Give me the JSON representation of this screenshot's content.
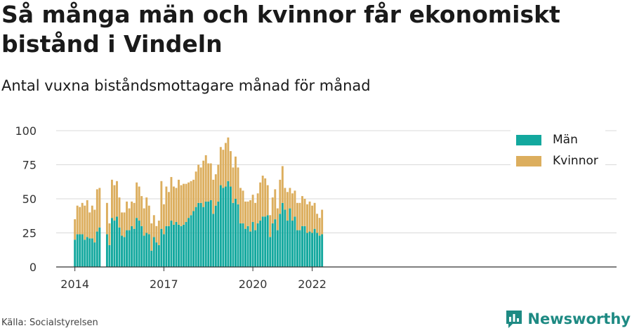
{
  "title": "Så många män och kvinnor får ekonomiskt bistånd i Vindeln",
  "subtitle": "Antal vuxna biståndsmottagare månad för månad",
  "source": "Källa: Socialstyrelsen",
  "brand": {
    "name": "Newsworthy",
    "color": "#1e8a83",
    "icon": "newsworthy-logo-icon"
  },
  "colors": {
    "men": "#13a89e",
    "women": "#dcae5e",
    "grid": "#d9d9d9",
    "axis": "#333333"
  },
  "chart_data": {
    "type": "bar",
    "stacked": true,
    "x_start": "2014-01",
    "x_ticks": [
      "2014",
      "2017",
      "2020",
      "2022"
    ],
    "y_ticks": [
      0,
      25,
      50,
      75,
      100
    ],
    "ylim": [
      0,
      100
    ],
    "grid": true,
    "legend_position": "top-right",
    "series": [
      {
        "name": "Män",
        "color": "#13a89e",
        "values": [
          20,
          24,
          24,
          24,
          20,
          22,
          21,
          21,
          18,
          26,
          29,
          null,
          null,
          24,
          16,
          36,
          34,
          37,
          29,
          23,
          22,
          27,
          27,
          30,
          28,
          36,
          34,
          30,
          23,
          25,
          24,
          12,
          22,
          18,
          16,
          28,
          24,
          30,
          30,
          34,
          31,
          33,
          31,
          30,
          31,
          33,
          36,
          38,
          41,
          44,
          47,
          47,
          44,
          48,
          48,
          49,
          39,
          45,
          48,
          60,
          58,
          59,
          63,
          59,
          47,
          50,
          46,
          32,
          32,
          28,
          30,
          26,
          33,
          27,
          32,
          34,
          37,
          37,
          38,
          22,
          32,
          35,
          27,
          39,
          47,
          42,
          34,
          43,
          34,
          37,
          27,
          27,
          30,
          30,
          25,
          26,
          25,
          28,
          25,
          23,
          24
        ]
      },
      {
        "name": "Kvinnor",
        "color": "#dcae5e",
        "values": [
          15,
          21,
          20,
          23,
          25,
          27,
          19,
          24,
          24,
          31,
          29,
          null,
          null,
          23,
          16,
          28,
          26,
          26,
          22,
          17,
          18,
          21,
          16,
          18,
          19,
          26,
          25,
          22,
          20,
          26,
          21,
          20,
          16,
          12,
          18,
          35,
          22,
          29,
          25,
          32,
          28,
          25,
          33,
          30,
          30,
          28,
          26,
          25,
          23,
          26,
          28,
          26,
          34,
          34,
          28,
          27,
          25,
          23,
          27,
          28,
          28,
          32,
          32,
          26,
          26,
          31,
          27,
          26,
          24,
          20,
          18,
          23,
          20,
          20,
          22,
          28,
          30,
          28,
          22,
          16,
          19,
          22,
          16,
          25,
          27,
          16,
          21,
          15,
          20,
          19,
          20,
          20,
          22,
          20,
          21,
          22,
          20,
          19,
          14,
          13,
          18
        ]
      }
    ]
  }
}
